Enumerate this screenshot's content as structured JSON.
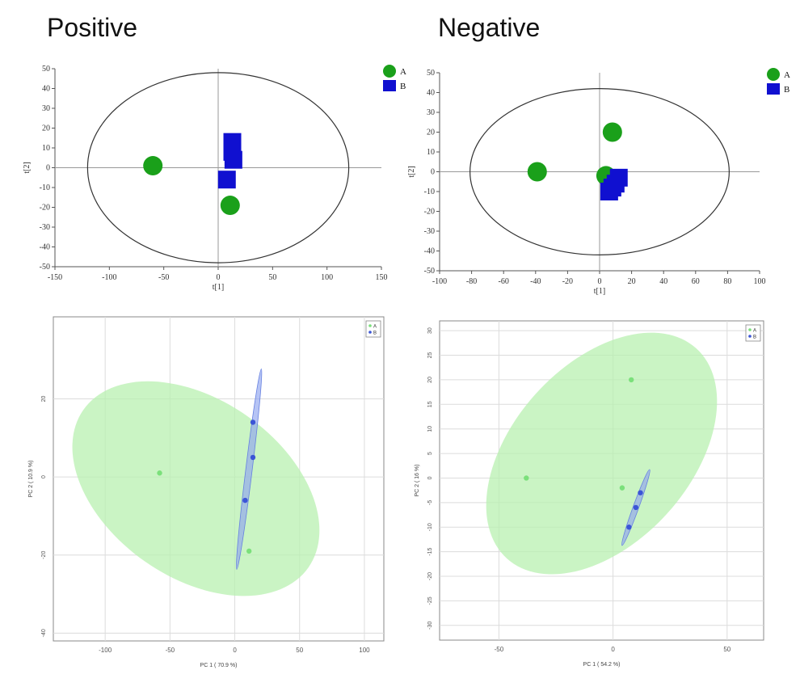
{
  "columns": {
    "left": "Positive",
    "right": "Negative"
  },
  "chart_data": [
    {
      "type": "scatter",
      "panel": "positive-score",
      "title": "",
      "xlabel": "t[1]",
      "ylabel": "t[2]",
      "xlim": [
        -150,
        150
      ],
      "ylim": [
        -50,
        50
      ],
      "xticks": [
        -150,
        -100,
        -50,
        0,
        50,
        100,
        150
      ],
      "yticks": [
        50,
        40,
        30,
        20,
        10,
        0,
        -10,
        -20,
        -30,
        -40,
        -50
      ],
      "ellipse": {
        "rx": 120,
        "ry": 48
      },
      "legend": "top-right",
      "series": [
        {
          "name": "A",
          "marker": "circle",
          "color": "#1aa01a",
          "points": [
            [
              -60,
              1
            ],
            [
              11,
              -19
            ]
          ]
        },
        {
          "name": "B",
          "marker": "square",
          "color": "#1010d0",
          "points": [
            [
              13,
              13
            ],
            [
              13,
              8
            ],
            [
              14,
              4
            ],
            [
              8,
              -6
            ]
          ]
        }
      ]
    },
    {
      "type": "scatter",
      "panel": "negative-score",
      "title": "",
      "xlabel": "t[1]",
      "ylabel": "t[2]",
      "xlim": [
        -100,
        100
      ],
      "ylim": [
        -50,
        50
      ],
      "xticks": [
        -100,
        -80,
        -60,
        -40,
        -20,
        0,
        20,
        40,
        60,
        80,
        100
      ],
      "yticks": [
        50,
        40,
        30,
        20,
        10,
        0,
        -10,
        -20,
        -30,
        -40,
        -50
      ],
      "ellipse": {
        "rx": 81,
        "ry": 42
      },
      "legend": "top-right",
      "series": [
        {
          "name": "A",
          "marker": "circle",
          "color": "#1aa01a",
          "points": [
            [
              -39,
              0
            ],
            [
              8,
              20
            ],
            [
              4,
              -2
            ]
          ]
        },
        {
          "name": "B",
          "marker": "square",
          "color": "#1010d0",
          "points": [
            [
              12,
              -3
            ],
            [
              10,
              -6
            ],
            [
              8,
              -8
            ],
            [
              6,
              -10
            ]
          ]
        }
      ]
    },
    {
      "type": "scatter",
      "panel": "positive-pca",
      "title": "",
      "xlabel": "PC 1 ( 70.9 %)",
      "ylabel": "PC 2 ( 10.9 %)",
      "xlim": [
        -140,
        115
      ],
      "ylim": [
        -42,
        41
      ],
      "xticks": [
        -100,
        -50,
        0,
        50,
        100
      ],
      "yticks": [
        20,
        0,
        -20,
        -40
      ],
      "legend": "top-right",
      "series": [
        {
          "name": "A",
          "color": "#7be07b",
          "points": [
            [
              -58,
              1
            ],
            [
              11,
              -19
            ]
          ]
        },
        {
          "name": "B",
          "color": "#3b55d6",
          "points": [
            [
              14,
              14
            ],
            [
              14,
              5
            ],
            [
              8,
              -6
            ]
          ]
        }
      ]
    },
    {
      "type": "scatter",
      "panel": "negative-pca",
      "title": "",
      "xlabel": "PC 1 ( 54.2 %)",
      "ylabel": "PC 2 ( 16 %)",
      "xlim": [
        -76,
        66
      ],
      "ylim": [
        -33,
        32
      ],
      "xticks": [
        -50,
        0,
        50
      ],
      "yticks": [
        30,
        25,
        20,
        15,
        10,
        5,
        0,
        -5,
        -10,
        -15,
        -20,
        -25,
        -30
      ],
      "legend": "top-right",
      "series": [
        {
          "name": "A",
          "color": "#7be07b",
          "points": [
            [
              -38,
              0
            ],
            [
              8,
              20
            ],
            [
              4,
              -2
            ]
          ]
        },
        {
          "name": "B",
          "color": "#3b55d6",
          "points": [
            [
              12,
              -3
            ],
            [
              10,
              -6
            ],
            [
              7,
              -10
            ]
          ]
        }
      ]
    }
  ]
}
